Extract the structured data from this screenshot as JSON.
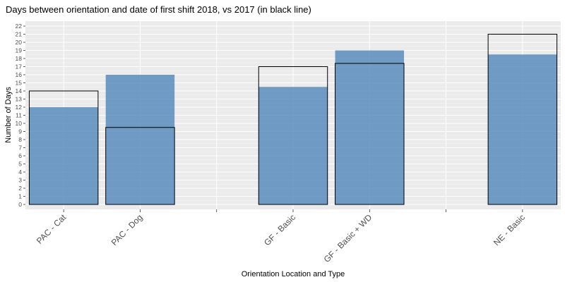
{
  "chart_data": {
    "type": "bar",
    "title": "Days between orientation and date of first shift 2018, vs 2017 (in black line)",
    "xlabel": "Orientation Location and Type",
    "ylabel": "Number of Days",
    "categories": [
      "PAC - Cat",
      "PAC - Dog",
      "",
      "GF - Basic",
      "GF - Basic + WD",
      "",
      "NE - Basic"
    ],
    "series": [
      {
        "name": "2018",
        "values": [
          12,
          16,
          null,
          14.5,
          19,
          null,
          18.5
        ]
      },
      {
        "name": "2017",
        "values": [
          14,
          9.5,
          null,
          17,
          17.4,
          null,
          21
        ]
      }
    ],
    "ylim": [
      0,
      22
    ],
    "yticks": [
      0,
      1,
      2,
      3,
      4,
      5,
      6,
      7,
      8,
      9,
      10,
      11,
      12,
      13,
      14,
      15,
      16,
      17,
      18,
      19,
      20,
      21,
      22
    ],
    "grid": true,
    "colors": {
      "fill_2018": "#4f86b9",
      "outline_2017": "#000000",
      "panel": "#ebebeb",
      "gridline": "#ffffff"
    }
  }
}
